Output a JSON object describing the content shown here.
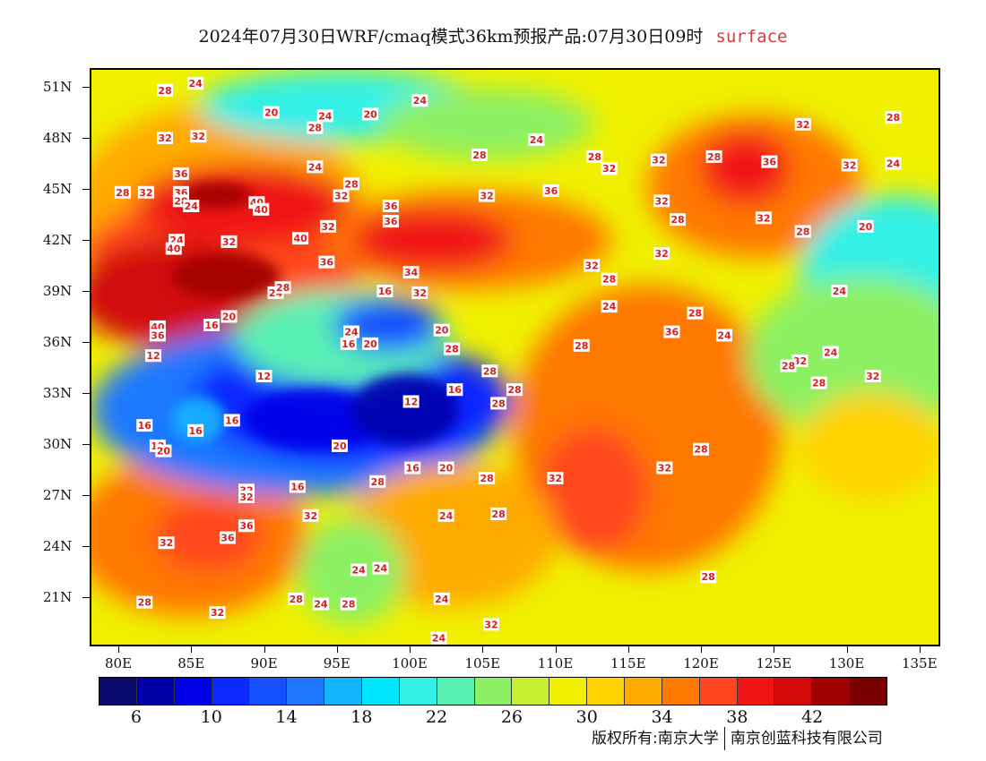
{
  "title": {
    "main": "2024年07月30日WRF/cmaq模式36km预报产品:07月30日09时",
    "variable": "surface"
  },
  "axes": {
    "lat_labels": [
      "51N",
      "48N",
      "45N",
      "42N",
      "39N",
      "36N",
      "33N",
      "30N",
      "27N",
      "24N",
      "21N"
    ],
    "lon_labels": [
      "80E",
      "85E",
      "90E",
      "95E",
      "100E",
      "105E",
      "110E",
      "115E",
      "120E",
      "125E",
      "130E",
      "135E"
    ]
  },
  "colorbar": {
    "colors": [
      "#0a0a6e",
      "#0000aa",
      "#0000e6",
      "#0a28ff",
      "#1450ff",
      "#1e78ff",
      "#14b4ff",
      "#00e6ff",
      "#32f0e6",
      "#5af0b4",
      "#8cf064",
      "#c8f032",
      "#f0f000",
      "#ffd200",
      "#ffaa00",
      "#ff7800",
      "#ff461e",
      "#f01414",
      "#d20a0a",
      "#a00000",
      "#780000"
    ],
    "labels": [
      "6",
      "10",
      "14",
      "18",
      "22",
      "26",
      "30",
      "34",
      "38",
      "42"
    ]
  },
  "contour_labels": [
    {
      "text": "28",
      "lon": 83.2,
      "lat": 50.8
    },
    {
      "text": "24",
      "lon": 85.3,
      "lat": 51.2
    },
    {
      "text": "20",
      "lon": 90.5,
      "lat": 49.5
    },
    {
      "text": "28",
      "lon": 93.5,
      "lat": 48.6
    },
    {
      "text": "24",
      "lon": 94.2,
      "lat": 49.3
    },
    {
      "text": "20",
      "lon": 97.3,
      "lat": 49.4
    },
    {
      "text": "24",
      "lon": 100.7,
      "lat": 50.2
    },
    {
      "text": "24",
      "lon": 108.7,
      "lat": 47.9
    },
    {
      "text": "32",
      "lon": 83.2,
      "lat": 48.0
    },
    {
      "text": "32",
      "lon": 85.5,
      "lat": 48.1
    },
    {
      "text": "28",
      "lon": 104.8,
      "lat": 47.0
    },
    {
      "text": "28",
      "lon": 112.7,
      "lat": 46.9
    },
    {
      "text": "32",
      "lon": 113.7,
      "lat": 46.2
    },
    {
      "text": "32",
      "lon": 117.1,
      "lat": 46.7
    },
    {
      "text": "28",
      "lon": 120.9,
      "lat": 46.9
    },
    {
      "text": "36",
      "lon": 124.7,
      "lat": 46.6
    },
    {
      "text": "32",
      "lon": 127.0,
      "lat": 48.8
    },
    {
      "text": "28",
      "lon": 133.2,
      "lat": 49.2
    },
    {
      "text": "32",
      "lon": 130.2,
      "lat": 46.4
    },
    {
      "text": "24",
      "lon": 133.2,
      "lat": 46.5
    },
    {
      "text": "36",
      "lon": 84.3,
      "lat": 45.9
    },
    {
      "text": "36",
      "lon": 84.3,
      "lat": 44.8
    },
    {
      "text": "28",
      "lon": 80.3,
      "lat": 44.8
    },
    {
      "text": "32",
      "lon": 81.9,
      "lat": 44.8
    },
    {
      "text": "28",
      "lon": 84.3,
      "lat": 44.3
    },
    {
      "text": "24",
      "lon": 85.0,
      "lat": 44.0
    },
    {
      "text": "24",
      "lon": 93.5,
      "lat": 46.3
    },
    {
      "text": "28",
      "lon": 96.0,
      "lat": 45.3
    },
    {
      "text": "32",
      "lon": 95.3,
      "lat": 44.6
    },
    {
      "text": "32",
      "lon": 105.3,
      "lat": 44.6
    },
    {
      "text": "36",
      "lon": 109.7,
      "lat": 44.9
    },
    {
      "text": "32",
      "lon": 117.3,
      "lat": 44.3
    },
    {
      "text": "40",
      "lon": 89.5,
      "lat": 44.2
    },
    {
      "text": "40",
      "lon": 89.8,
      "lat": 43.8
    },
    {
      "text": "36",
      "lon": 98.7,
      "lat": 44.0
    },
    {
      "text": "36",
      "lon": 98.7,
      "lat": 43.1
    },
    {
      "text": "32",
      "lon": 94.4,
      "lat": 42.8
    },
    {
      "text": "28",
      "lon": 118.4,
      "lat": 43.2
    },
    {
      "text": "32",
      "lon": 124.3,
      "lat": 43.3
    },
    {
      "text": "28",
      "lon": 127.0,
      "lat": 42.5
    },
    {
      "text": "20",
      "lon": 131.3,
      "lat": 42.8
    },
    {
      "text": "24",
      "lon": 84.0,
      "lat": 42.0
    },
    {
      "text": "40",
      "lon": 83.8,
      "lat": 41.5
    },
    {
      "text": "32",
      "lon": 87.6,
      "lat": 41.9
    },
    {
      "text": "40",
      "lon": 92.5,
      "lat": 42.1
    },
    {
      "text": "32",
      "lon": 117.3,
      "lat": 41.2
    },
    {
      "text": "36",
      "lon": 94.3,
      "lat": 40.7
    },
    {
      "text": "34",
      "lon": 100.1,
      "lat": 40.1
    },
    {
      "text": "32",
      "lon": 112.5,
      "lat": 40.5
    },
    {
      "text": "28",
      "lon": 113.7,
      "lat": 39.7
    },
    {
      "text": "24",
      "lon": 90.8,
      "lat": 38.9
    },
    {
      "text": "28",
      "lon": 91.3,
      "lat": 39.2
    },
    {
      "text": "16",
      "lon": 98.3,
      "lat": 39.0
    },
    {
      "text": "32",
      "lon": 100.7,
      "lat": 38.9
    },
    {
      "text": "24",
      "lon": 129.5,
      "lat": 39.0
    },
    {
      "text": "24",
      "lon": 113.7,
      "lat": 38.1
    },
    {
      "text": "28",
      "lon": 119.6,
      "lat": 37.7
    },
    {
      "text": "20",
      "lon": 87.6,
      "lat": 37.5
    },
    {
      "text": "16",
      "lon": 86.4,
      "lat": 37.0
    },
    {
      "text": "40",
      "lon": 82.7,
      "lat": 36.9
    },
    {
      "text": "36",
      "lon": 82.7,
      "lat": 36.4
    },
    {
      "text": "24",
      "lon": 96.0,
      "lat": 36.6
    },
    {
      "text": "16",
      "lon": 95.8,
      "lat": 35.9
    },
    {
      "text": "20",
      "lon": 97.3,
      "lat": 35.9
    },
    {
      "text": "20",
      "lon": 102.2,
      "lat": 36.7
    },
    {
      "text": "36",
      "lon": 118.0,
      "lat": 36.6
    },
    {
      "text": "24",
      "lon": 121.6,
      "lat": 36.4
    },
    {
      "text": "28",
      "lon": 102.9,
      "lat": 35.6
    },
    {
      "text": "28",
      "lon": 111.8,
      "lat": 35.8
    },
    {
      "text": "12",
      "lon": 82.4,
      "lat": 35.2
    },
    {
      "text": "24",
      "lon": 128.9,
      "lat": 35.4
    },
    {
      "text": "32",
      "lon": 126.8,
      "lat": 34.9
    },
    {
      "text": "28",
      "lon": 126.0,
      "lat": 34.6
    },
    {
      "text": "32",
      "lon": 131.8,
      "lat": 34.0
    },
    {
      "text": "12",
      "lon": 90.0,
      "lat": 34.0
    },
    {
      "text": "28",
      "lon": 105.5,
      "lat": 34.3
    },
    {
      "text": "28",
      "lon": 128.1,
      "lat": 33.6
    },
    {
      "text": "16",
      "lon": 103.1,
      "lat": 33.2
    },
    {
      "text": "28",
      "lon": 107.2,
      "lat": 33.2
    },
    {
      "text": "12",
      "lon": 100.1,
      "lat": 32.5
    },
    {
      "text": "28",
      "lon": 106.1,
      "lat": 32.4
    },
    {
      "text": "16",
      "lon": 87.8,
      "lat": 31.4
    },
    {
      "text": "16",
      "lon": 81.8,
      "lat": 31.1
    },
    {
      "text": "16",
      "lon": 85.3,
      "lat": 30.8
    },
    {
      "text": "20",
      "lon": 95.2,
      "lat": 29.9
    },
    {
      "text": "12",
      "lon": 82.7,
      "lat": 29.9
    },
    {
      "text": "20",
      "lon": 83.1,
      "lat": 29.6
    },
    {
      "text": "28",
      "lon": 120.0,
      "lat": 29.7
    },
    {
      "text": "16",
      "lon": 100.2,
      "lat": 28.6
    },
    {
      "text": "20",
      "lon": 102.5,
      "lat": 28.6
    },
    {
      "text": "32",
      "lon": 117.5,
      "lat": 28.6
    },
    {
      "text": "28",
      "lon": 105.3,
      "lat": 28.0
    },
    {
      "text": "32",
      "lon": 110.0,
      "lat": 28.0
    },
    {
      "text": "28",
      "lon": 97.8,
      "lat": 27.8
    },
    {
      "text": "16",
      "lon": 92.3,
      "lat": 27.5
    },
    {
      "text": "32",
      "lon": 88.8,
      "lat": 27.3
    },
    {
      "text": "32",
      "lon": 88.8,
      "lat": 26.9
    },
    {
      "text": "24",
      "lon": 102.5,
      "lat": 25.8
    },
    {
      "text": "28",
      "lon": 106.1,
      "lat": 25.9
    },
    {
      "text": "32",
      "lon": 93.2,
      "lat": 25.8
    },
    {
      "text": "36",
      "lon": 88.8,
      "lat": 25.2
    },
    {
      "text": "36",
      "lon": 87.5,
      "lat": 24.5
    },
    {
      "text": "32",
      "lon": 83.3,
      "lat": 24.2
    },
    {
      "text": "24",
      "lon": 96.5,
      "lat": 22.6
    },
    {
      "text": "24",
      "lon": 98.0,
      "lat": 22.7
    },
    {
      "text": "28",
      "lon": 120.5,
      "lat": 22.2
    },
    {
      "text": "28",
      "lon": 81.8,
      "lat": 20.7
    },
    {
      "text": "32",
      "lon": 86.8,
      "lat": 20.1
    },
    {
      "text": "28",
      "lon": 92.2,
      "lat": 20.9
    },
    {
      "text": "24",
      "lon": 93.9,
      "lat": 20.6
    },
    {
      "text": "28",
      "lon": 95.8,
      "lat": 20.6
    },
    {
      "text": "24",
      "lon": 102.2,
      "lat": 20.9
    },
    {
      "text": "32",
      "lon": 105.6,
      "lat": 19.4
    },
    {
      "text": "24",
      "lon": 102.0,
      "lat": 18.6
    }
  ],
  "copyright": {
    "left": "版权所有:南京大学",
    "right": "南京创蓝科技有限公司"
  }
}
